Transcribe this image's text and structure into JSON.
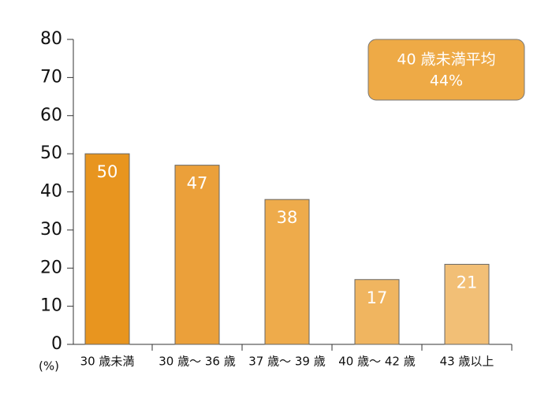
{
  "chart_data": {
    "type": "bar",
    "categories": [
      "30 歳未満",
      "30 歳～ 36 歳",
      "37 歳～ 39 歳",
      "40 歳～ 42 歳",
      "43 歳以上"
    ],
    "values": [
      50,
      47,
      38,
      17,
      21
    ],
    "colors": [
      "#e8951f",
      "#eba03a",
      "#eeab4b",
      "#f0b560",
      "#f2bf76"
    ],
    "ylim": [
      0,
      80
    ],
    "yticks": [
      0,
      10,
      20,
      30,
      40,
      50,
      60,
      70,
      80
    ],
    "y_unit": "(%)",
    "annotation": [
      "40 歳未満平均",
      "44%"
    ],
    "annotation_color": "#eeaa46"
  }
}
